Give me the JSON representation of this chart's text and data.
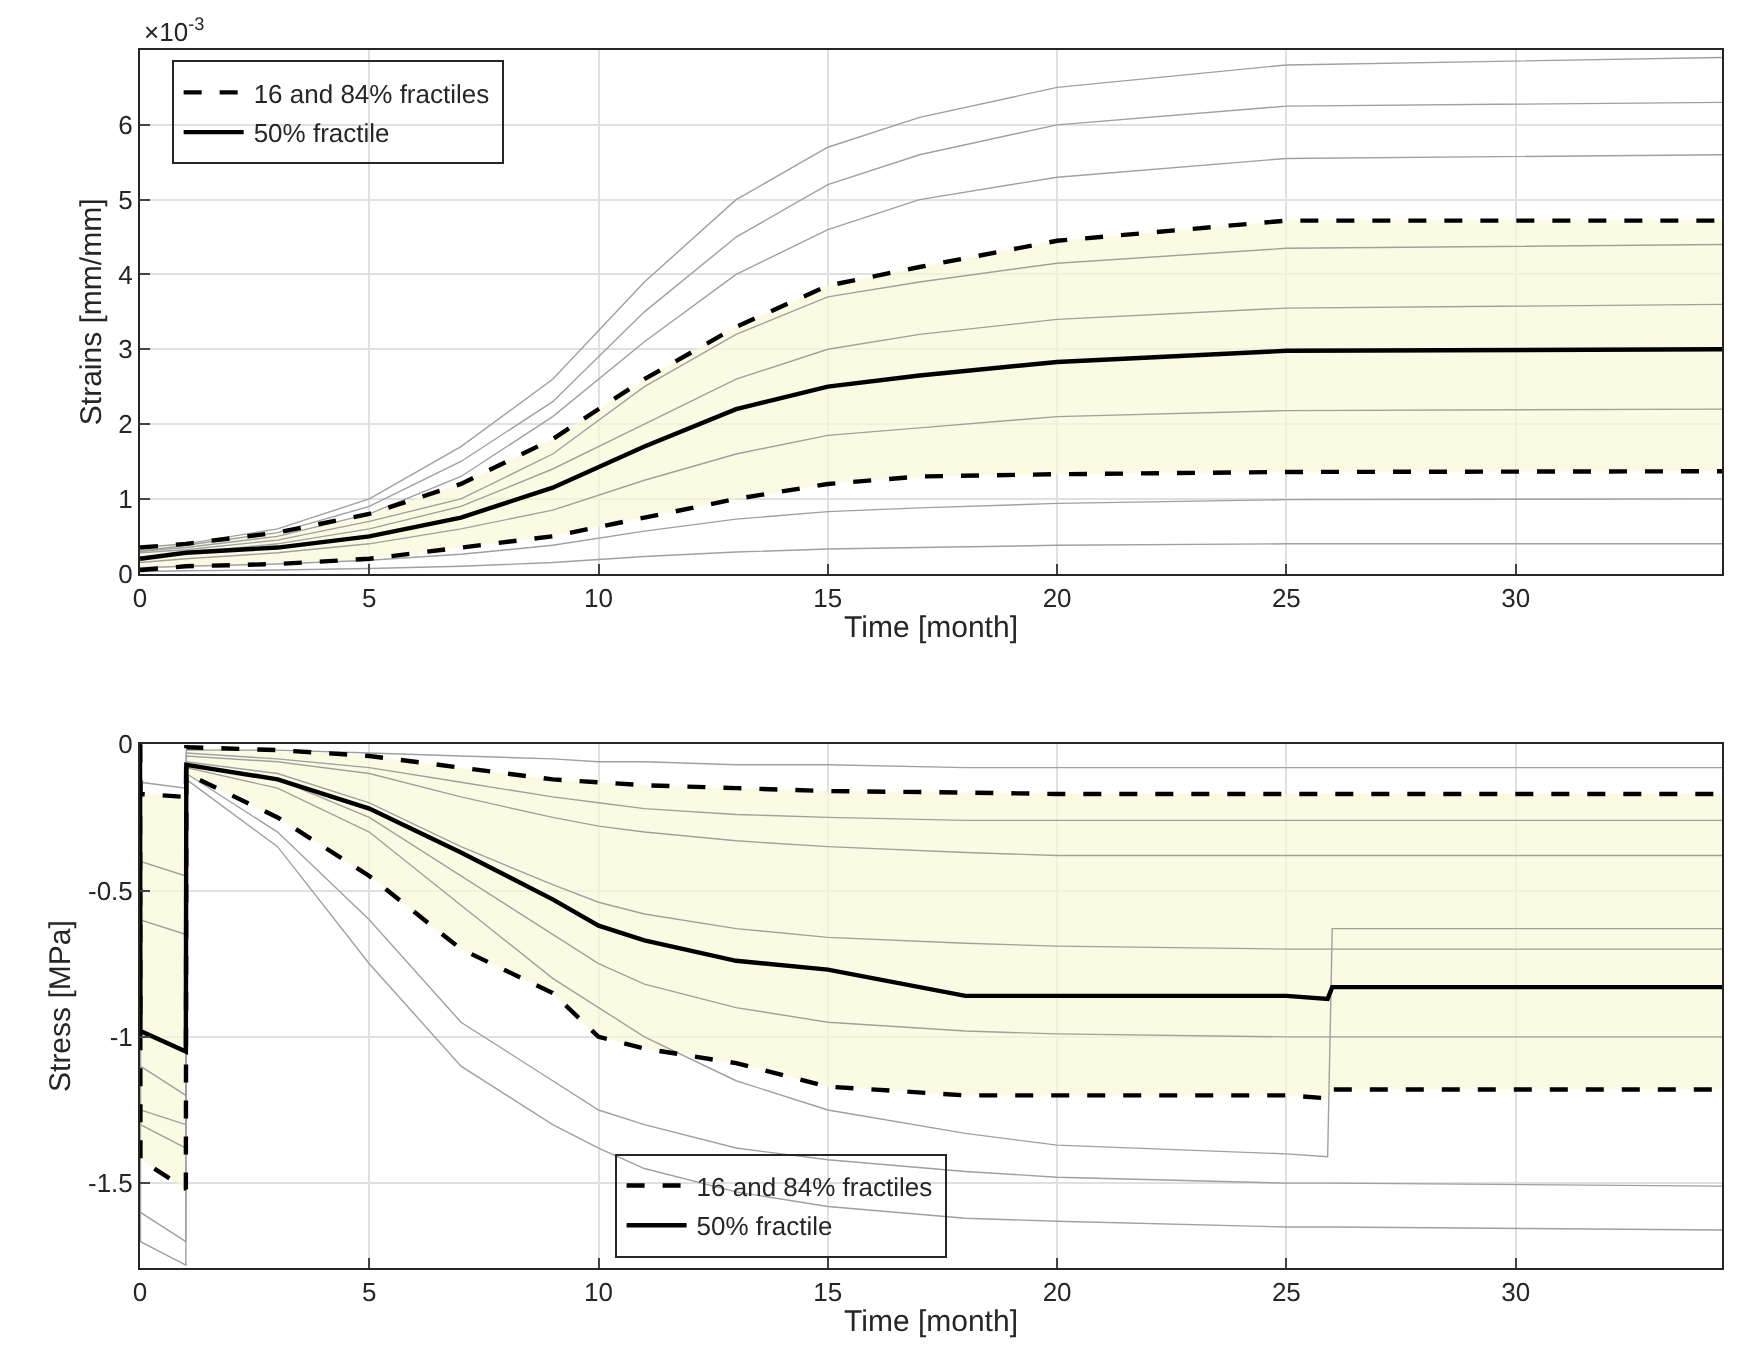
{
  "chart_data": [
    {
      "type": "line",
      "xlabel": "Time [month]",
      "ylabel": "Strains [mm/mm]",
      "annotations": [
        "×10$^{-3}$"
      ],
      "x": [
        0,
        1,
        3,
        5,
        7,
        9,
        11,
        13,
        15,
        17,
        20,
        25,
        34.5
      ],
      "xlim": [
        0,
        34.5
      ],
      "xticks": [
        0,
        5,
        10,
        15,
        20,
        25,
        30
      ],
      "ylim": [
        0,
        7
      ],
      "yticks": [
        0,
        1,
        2,
        3,
        4,
        5,
        6
      ],
      "grid": true,
      "legend": "top left",
      "marker": "none",
      "series": [
        {
          "color": "#a0a0a0",
          "values": [
            0.35,
            0.4,
            0.6,
            1.0,
            1.7,
            2.6,
            3.9,
            5.0,
            5.7,
            6.1,
            6.5,
            6.8,
            6.9
          ]
        },
        {
          "color": "#a0a0a0",
          "values": [
            0.3,
            0.38,
            0.55,
            0.9,
            1.5,
            2.3,
            3.5,
            4.5,
            5.2,
            5.6,
            6.0,
            6.25,
            6.3
          ]
        },
        {
          "color": "#a0a0a0",
          "values": [
            0.3,
            0.35,
            0.5,
            0.8,
            1.3,
            2.1,
            3.1,
            4.0,
            4.6,
            5.0,
            5.3,
            5.55,
            5.6
          ]
        },
        {
          "color": "#a0a0a0",
          "values": [
            0.28,
            0.32,
            0.45,
            0.7,
            1.0,
            1.6,
            2.5,
            3.2,
            3.7,
            3.9,
            4.15,
            4.35,
            4.4
          ]
        },
        {
          "color": "#a0a0a0",
          "values": [
            0.22,
            0.28,
            0.4,
            0.6,
            0.9,
            1.4,
            2.0,
            2.6,
            3.0,
            3.2,
            3.4,
            3.55,
            3.6
          ]
        },
        {
          "color": "#a0a0a0",
          "values": [
            0.15,
            0.2,
            0.28,
            0.4,
            0.6,
            0.85,
            1.25,
            1.6,
            1.85,
            1.95,
            2.1,
            2.18,
            2.2
          ]
        },
        {
          "color": "#a0a0a0",
          "values": [
            0.08,
            0.1,
            0.13,
            0.18,
            0.26,
            0.38,
            0.57,
            0.73,
            0.83,
            0.88,
            0.94,
            0.99,
            1.0
          ]
        },
        {
          "color": "#a0a0a0",
          "values": [
            0.03,
            0.04,
            0.05,
            0.07,
            0.1,
            0.15,
            0.23,
            0.29,
            0.33,
            0.35,
            0.38,
            0.4,
            0.4
          ]
        },
        {
          "name": "16 and 84% fractiles",
          "color": "#000000",
          "line_style": "dashed",
          "values": [
            0.35,
            0.4,
            0.55,
            0.8,
            1.2,
            1.8,
            2.6,
            3.3,
            3.85,
            4.1,
            4.45,
            4.72,
            4.72
          ]
        },
        {
          "color": "#000000",
          "line_style": "dashed",
          "values": [
            0.05,
            0.1,
            0.13,
            0.2,
            0.35,
            0.5,
            0.75,
            1.0,
            1.2,
            1.3,
            1.33,
            1.36,
            1.37
          ]
        },
        {
          "name": "50% fractile",
          "color": "#000000",
          "line_style": "solid",
          "values": [
            0.2,
            0.28,
            0.35,
            0.5,
            0.75,
            1.15,
            1.7,
            2.2,
            2.5,
            2.65,
            2.83,
            2.98,
            3.0
          ],
          "lower": [
            0.05,
            0.1,
            0.13,
            0.2,
            0.35,
            0.5,
            0.75,
            1.0,
            1.2,
            1.3,
            1.33,
            1.36,
            1.37
          ],
          "upper": [
            0.35,
            0.4,
            0.55,
            0.8,
            1.2,
            1.8,
            2.6,
            3.3,
            3.85,
            4.1,
            4.45,
            4.72,
            4.72
          ]
        }
      ]
    },
    {
      "type": "line",
      "xlabel": "Time [month]",
      "ylabel": "Stress [MPa]",
      "x": [
        0,
        0.01,
        1,
        1.01,
        3,
        5,
        7,
        9,
        10,
        11,
        13,
        15,
        18,
        20,
        25,
        25.9,
        26,
        34.5
      ],
      "xlim": [
        0,
        34.5
      ],
      "xticks": [
        0,
        5,
        10,
        15,
        20,
        25,
        30
      ],
      "ylim": [
        -1.79,
        0
      ],
      "yticks": [
        {
          "value": -1.5,
          "label": "-1.5"
        },
        {
          "value": -1,
          "label": "-1"
        },
        {
          "value": -0.5,
          "label": "-0.5"
        },
        0
      ],
      "grid": true,
      "legend": "bottom",
      "marker": "none",
      "series": [
        {
          "color": "#a0a0a0",
          "values": [
            0,
            -0.13,
            -0.15,
            -0.02,
            -0.02,
            -0.03,
            -0.04,
            -0.05,
            -0.06,
            -0.06,
            -0.07,
            -0.07,
            -0.08,
            -0.08,
            -0.08,
            -0.08,
            -0.08,
            -0.08
          ]
        },
        {
          "color": "#a0a0a0",
          "values": [
            0,
            -0.4,
            -0.45,
            -0.03,
            -0.05,
            -0.08,
            -0.13,
            -0.18,
            -0.2,
            -0.22,
            -0.24,
            -0.25,
            -0.26,
            -0.26,
            -0.26,
            -0.26,
            -0.26,
            -0.26
          ]
        },
        {
          "color": "#a0a0a0",
          "values": [
            0,
            -0.6,
            -0.65,
            -0.04,
            -0.06,
            -0.1,
            -0.18,
            -0.25,
            -0.28,
            -0.3,
            -0.33,
            -0.35,
            -0.37,
            -0.38,
            -0.38,
            -0.38,
            -0.38,
            -0.38
          ]
        },
        {
          "color": "#a0a0a0",
          "values": [
            0,
            -1.1,
            -1.2,
            -0.06,
            -0.1,
            -0.2,
            -0.35,
            -0.48,
            -0.54,
            -0.58,
            -0.63,
            -0.66,
            -0.68,
            -0.69,
            -0.7,
            -0.7,
            -0.7,
            -0.7
          ]
        },
        {
          "color": "#a0a0a0",
          "values": [
            0,
            -1.25,
            -1.3,
            -0.07,
            -0.12,
            -0.25,
            -0.45,
            -0.65,
            -0.75,
            -0.82,
            -0.9,
            -0.95,
            -0.98,
            -0.99,
            -1.0,
            -1.0,
            -1.0,
            -1.0
          ]
        },
        {
          "color": "#a0a0a0",
          "values": [
            0,
            -1.3,
            -1.38,
            -0.08,
            -0.15,
            -0.3,
            -0.55,
            -0.8,
            -0.9,
            -1.0,
            -1.15,
            -1.25,
            -1.33,
            -1.37,
            -1.4,
            -1.41,
            -0.63,
            -0.63
          ]
        },
        {
          "color": "#a0a0a0",
          "values": [
            0,
            -1.6,
            -1.7,
            -0.1,
            -0.3,
            -0.6,
            -0.95,
            -1.15,
            -1.25,
            -1.3,
            -1.38,
            -1.42,
            -1.46,
            -1.48,
            -1.5,
            -1.5,
            -1.5,
            -1.51
          ]
        },
        {
          "color": "#a0a0a0",
          "values": [
            0,
            -1.7,
            -1.78,
            -0.12,
            -0.35,
            -0.75,
            -1.1,
            -1.3,
            -1.38,
            -1.45,
            -1.53,
            -1.58,
            -1.62,
            -1.63,
            -1.65,
            -1.65,
            -1.65,
            -1.66
          ]
        },
        {
          "name": "16 and 84% fractiles",
          "color": "#000000",
          "line_style": "dashed",
          "values": [
            0,
            -0.17,
            -0.18,
            -0.01,
            -0.02,
            -0.04,
            -0.08,
            -0.12,
            -0.13,
            -0.14,
            -0.15,
            -0.16,
            -0.165,
            -0.17,
            -0.17,
            -0.17,
            -0.17,
            -0.17
          ]
        },
        {
          "color": "#000000",
          "line_style": "dashed",
          "values": [
            0,
            -1.42,
            -1.52,
            -0.1,
            -0.25,
            -0.45,
            -0.7,
            -0.85,
            -1.0,
            -1.04,
            -1.09,
            -1.17,
            -1.2,
            -1.2,
            -1.2,
            -1.21,
            -1.18,
            -1.18
          ]
        },
        {
          "name": "50% fractile",
          "color": "#000000",
          "line_style": "solid",
          "values": [
            0,
            -0.98,
            -1.05,
            -0.07,
            -0.12,
            -0.22,
            -0.37,
            -0.53,
            -0.62,
            -0.67,
            -0.74,
            -0.77,
            -0.86,
            -0.86,
            -0.86,
            -0.87,
            -0.83,
            -0.83
          ],
          "lower": [
            0,
            -1.42,
            -1.52,
            -0.1,
            -0.25,
            -0.45,
            -0.7,
            -0.85,
            -1.0,
            -1.04,
            -1.09,
            -1.17,
            -1.2,
            -1.2,
            -1.2,
            -1.21,
            -1.18,
            -1.18
          ],
          "upper": [
            0,
            -0.17,
            -0.18,
            -0.01,
            -0.02,
            -0.04,
            -0.08,
            -0.12,
            -0.13,
            -0.14,
            -0.15,
            -0.16,
            -0.165,
            -0.17,
            -0.17,
            -0.17,
            -0.17,
            -0.17
          ]
        }
      ]
    }
  ]
}
